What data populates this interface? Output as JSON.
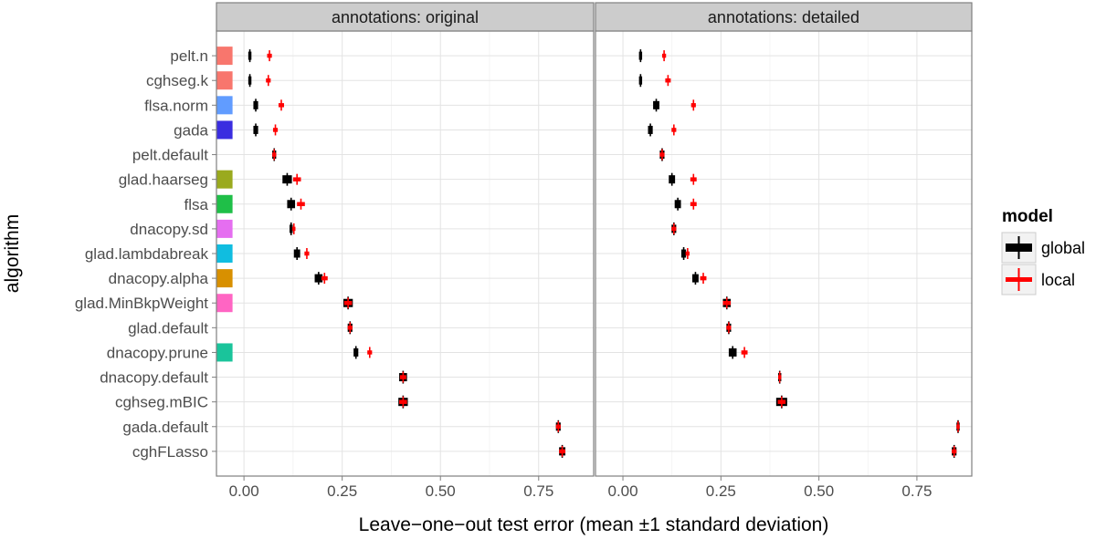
{
  "chart_data": {
    "type": "scatter",
    "panels": [
      "annotations: original",
      "annotations: detailed"
    ],
    "xlabel": "Leave−one−out test error (mean ±1 standard deviation)",
    "ylabel": "algorithm",
    "xlim": [
      -0.07,
      0.89
    ],
    "xticks": [
      0.0,
      0.25,
      0.5,
      0.75
    ],
    "xtick_labels": [
      "0.00",
      "0.25",
      "0.50",
      "0.75"
    ],
    "grid": true,
    "legend": {
      "title": "model",
      "placement": "right",
      "entries": [
        {
          "label": "global",
          "color": "#000000"
        },
        {
          "label": "local",
          "color": "#ff0000"
        }
      ]
    },
    "algorithms": [
      {
        "name": "pelt.n",
        "swatch": "#f8766d"
      },
      {
        "name": "cghseg.k",
        "swatch": "#f8766d"
      },
      {
        "name": "flsa.norm",
        "swatch": "#619cff"
      },
      {
        "name": "gada",
        "swatch": "#3a2de0"
      },
      {
        "name": "pelt.default",
        "swatch": null
      },
      {
        "name": "glad.haarseg",
        "swatch": "#9aaa1e"
      },
      {
        "name": "flsa",
        "swatch": "#1fbf48"
      },
      {
        "name": "dnacopy.sd",
        "swatch": "#e56ef0"
      },
      {
        "name": "glad.lambdabreak",
        "swatch": "#10bde0"
      },
      {
        "name": "dnacopy.alpha",
        "swatch": "#d89000"
      },
      {
        "name": "glad.MinBkpWeight",
        "swatch": "#ff65c3"
      },
      {
        "name": "glad.default",
        "swatch": null
      },
      {
        "name": "dnacopy.prune",
        "swatch": "#1ac49b"
      },
      {
        "name": "dnacopy.default",
        "swatch": null
      },
      {
        "name": "cghseg.mBIC",
        "swatch": null
      },
      {
        "name": "gada.default",
        "swatch": null
      },
      {
        "name": "cghFLasso",
        "swatch": null
      }
    ],
    "series": [
      {
        "name": "global",
        "color": "#000000",
        "original": {
          "mean": [
            0.015,
            0.015,
            0.03,
            0.03,
            0.077,
            0.11,
            0.12,
            0.12,
            0.135,
            0.19,
            0.265,
            0.27,
            0.285,
            0.405,
            0.405,
            0.8,
            0.81
          ],
          "sd": [
            0.004,
            0.004,
            0.006,
            0.006,
            0.005,
            0.012,
            0.01,
            0.004,
            0.008,
            0.01,
            0.012,
            0.006,
            0.006,
            0.01,
            0.012,
            0.006,
            0.008
          ]
        },
        "detailed": {
          "mean": [
            0.045,
            0.045,
            0.085,
            0.07,
            0.1,
            0.125,
            0.14,
            0.13,
            0.155,
            0.185,
            0.265,
            0.27,
            0.28,
            0.4,
            0.405,
            0.855,
            0.845
          ],
          "sd": [
            0.004,
            0.004,
            0.008,
            0.006,
            0.006,
            0.008,
            0.008,
            0.006,
            0.006,
            0.008,
            0.01,
            0.006,
            0.01,
            0.004,
            0.014,
            0.004,
            0.006
          ]
        }
      },
      {
        "name": "local",
        "color": "#ff0000",
        "original": {
          "mean": [
            0.065,
            0.062,
            0.095,
            0.08,
            0.077,
            0.135,
            0.145,
            0.127,
            0.16,
            0.205,
            0.265,
            0.27,
            0.32,
            0.405,
            0.405,
            0.8,
            0.81
          ],
          "sd": [
            0.006,
            0.006,
            0.007,
            0.006,
            0.005,
            0.01,
            0.01,
            0.004,
            0.006,
            0.008,
            0.01,
            0.006,
            0.006,
            0.008,
            0.01,
            0.006,
            0.008
          ]
        },
        "detailed": {
          "mean": [
            0.105,
            0.115,
            0.18,
            0.13,
            0.1,
            0.18,
            0.18,
            0.13,
            0.165,
            0.205,
            0.265,
            0.27,
            0.31,
            0.4,
            0.405,
            0.855,
            0.845
          ],
          "sd": [
            0.005,
            0.007,
            0.006,
            0.006,
            0.006,
            0.008,
            0.008,
            0.006,
            0.005,
            0.008,
            0.01,
            0.006,
            0.008,
            0.004,
            0.01,
            0.004,
            0.006
          ]
        }
      }
    ]
  }
}
